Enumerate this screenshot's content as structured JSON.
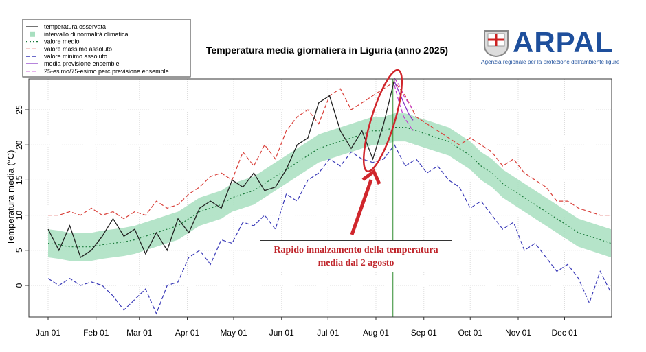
{
  "chart_data": {
    "type": "line",
    "title": "Temperatura media giornaliera in Liguria (anno 2025)",
    "ylabel": "Temperatura media (°C)",
    "xlabel": "",
    "ylim": [
      -4.5,
      29.5
    ],
    "yticks": [
      0,
      5,
      10,
      15,
      20,
      25
    ],
    "xticks": [
      {
        "date": "2025-01-01",
        "label": "Jan 01"
      },
      {
        "date": "2025-02-01",
        "label": "Feb 01"
      },
      {
        "date": "2025-03-01",
        "label": "Mar 01"
      },
      {
        "date": "2025-04-01",
        "label": "Apr 01"
      },
      {
        "date": "2025-05-01",
        "label": "May 01"
      },
      {
        "date": "2025-06-01",
        "label": "Jun 01"
      },
      {
        "date": "2025-07-01",
        "label": "Jul 01"
      },
      {
        "date": "2025-08-01",
        "label": "Aug 01"
      },
      {
        "date": "2025-09-01",
        "label": "Sep 01"
      },
      {
        "date": "2025-10-01",
        "label": "Oct 01"
      },
      {
        "date": "2025-11-01",
        "label": "Nov 01"
      },
      {
        "date": "2025-12-01",
        "label": "Dec 01"
      }
    ],
    "grid": true,
    "legend_position": "top-left",
    "climate_dates": [
      "2025-01-01",
      "2025-01-08",
      "2025-01-15",
      "2025-01-22",
      "2025-01-29",
      "2025-02-05",
      "2025-02-12",
      "2025-02-19",
      "2025-02-26",
      "2025-03-05",
      "2025-03-12",
      "2025-03-19",
      "2025-03-26",
      "2025-04-02",
      "2025-04-09",
      "2025-04-16",
      "2025-04-23",
      "2025-04-30",
      "2025-05-07",
      "2025-05-14",
      "2025-05-21",
      "2025-05-28",
      "2025-06-04",
      "2025-06-11",
      "2025-06-18",
      "2025-06-25",
      "2025-07-02",
      "2025-07-09",
      "2025-07-16",
      "2025-07-23",
      "2025-07-30",
      "2025-08-06",
      "2025-08-13",
      "2025-08-20",
      "2025-08-27",
      "2025-09-03",
      "2025-09-10",
      "2025-09-17",
      "2025-09-24",
      "2025-10-01",
      "2025-10-08",
      "2025-10-15",
      "2025-10-22",
      "2025-10-29",
      "2025-11-05",
      "2025-11-12",
      "2025-11-19",
      "2025-11-26",
      "2025-12-03",
      "2025-12-10",
      "2025-12-17",
      "2025-12-24",
      "2025-12-31"
    ],
    "series": [
      {
        "name": "valore medio",
        "color": "#1a7a3a",
        "style": "dotted",
        "values": [
          6,
          5.8,
          5.5,
          5.5,
          5.5,
          5.8,
          6,
          6.2,
          6.5,
          7,
          7.5,
          8,
          8.5,
          9.5,
          10.5,
          11,
          11.5,
          12.5,
          13,
          13.5,
          14.5,
          15.5,
          16.5,
          17.5,
          18.5,
          19.5,
          20,
          20.5,
          21,
          21.5,
          22,
          22,
          22.5,
          22.5,
          22,
          21.5,
          21,
          20.5,
          19.5,
          18.5,
          17,
          16,
          14.5,
          13.5,
          12.5,
          11.5,
          10.5,
          9.5,
          8.5,
          7.5,
          7,
          6.5,
          6
        ]
      },
      {
        "name": "valore massimo assoluto",
        "color": "#d9403a",
        "style": "dashed",
        "values": [
          10,
          10,
          10.5,
          10,
          11,
          10,
          10.5,
          9.5,
          10.5,
          10,
          12,
          11,
          11.5,
          13,
          14,
          15.5,
          16,
          15,
          19,
          17,
          20,
          18,
          22,
          24,
          25,
          23,
          27,
          28,
          25,
          26,
          27,
          28,
          29,
          27,
          24,
          23,
          22,
          21,
          20,
          21,
          20,
          19,
          17,
          18,
          16,
          15,
          14,
          12,
          12,
          11,
          10.5,
          10,
          10
        ]
      },
      {
        "name": "valore minimo assoluto",
        "color": "#3a3ab8",
        "style": "dashed",
        "values": [
          1,
          0,
          1,
          0,
          0.5,
          0,
          -1.5,
          -3.5,
          -2,
          -0.5,
          -4,
          0,
          0.5,
          4,
          5,
          3,
          6.5,
          6,
          9,
          8.5,
          10,
          8,
          13,
          12,
          15,
          16,
          18,
          17,
          19,
          18,
          17.5,
          18,
          20,
          17,
          18,
          16,
          17,
          15,
          14,
          11,
          12,
          10,
          8,
          9,
          5,
          6,
          4,
          2,
          3,
          1,
          -2.5,
          2,
          -1
        ]
      }
    ],
    "band": {
      "name": "intervallo di normalità climatica",
      "color": "#a8dfc0",
      "halfwidth": 2
    },
    "observed": {
      "name": "temperatura osservata",
      "color": "#222222",
      "dates": [
        "2025-01-01",
        "2025-01-08",
        "2025-01-15",
        "2025-01-22",
        "2025-01-29",
        "2025-02-05",
        "2025-02-12",
        "2025-02-19",
        "2025-02-26",
        "2025-03-05",
        "2025-03-12",
        "2025-03-19",
        "2025-03-26",
        "2025-04-02",
        "2025-04-09",
        "2025-04-16",
        "2025-04-23",
        "2025-04-30",
        "2025-05-07",
        "2025-05-14",
        "2025-05-21",
        "2025-05-28",
        "2025-06-04",
        "2025-06-11",
        "2025-06-18",
        "2025-06-25",
        "2025-07-02",
        "2025-07-09",
        "2025-07-16",
        "2025-07-23",
        "2025-07-30",
        "2025-08-06",
        "2025-08-13"
      ],
      "values": [
        8,
        5,
        8.5,
        4,
        5,
        7,
        9.5,
        7,
        8,
        4.5,
        7.5,
        5,
        9.5,
        7.5,
        11,
        12,
        11,
        15,
        14,
        16,
        13.5,
        14,
        16.5,
        20,
        21,
        26,
        27,
        22,
        19.5,
        22,
        18,
        23,
        29.3
      ]
    },
    "forecast": {
      "dates": [
        "2025-08-13",
        "2025-08-16",
        "2025-08-19",
        "2025-08-22",
        "2025-08-25"
      ],
      "mean": {
        "name": "media previsione ensemble",
        "color": "#8a3ac8",
        "values": [
          29,
          27.5,
          26,
          24.5,
          23.5
        ]
      },
      "p25": {
        "name": "25-esimo/75-esimo perc previsione ensemble",
        "color": "#c03ad0",
        "values": [
          28.5,
          26,
          24,
          23,
          22
        ]
      },
      "p75": {
        "values": [
          29.5,
          28.5,
          27,
          26,
          25
        ]
      }
    },
    "today_marker": {
      "date": "2025-08-12",
      "color": "#2e8b2e"
    },
    "annotation": {
      "line1": "Rapido innalzamento della temperatura",
      "line2": "media dal 2 agosto",
      "color": "#d0262c"
    }
  },
  "legend": {
    "items": [
      {
        "label": "temperatura osservata",
        "color": "#222222",
        "kind": "solid"
      },
      {
        "label": "intervallo di normalità climatica",
        "color": "#a8dfc0",
        "kind": "box"
      },
      {
        "label": "valore medio",
        "color": "#1a7a3a",
        "kind": "dotted"
      },
      {
        "label": "valore massimo assoluto",
        "color": "#d9403a",
        "kind": "dashed"
      },
      {
        "label": "valore minimo assoluto",
        "color": "#3a3ab8",
        "kind": "dashed"
      },
      {
        "label": "media previsione ensemble",
        "color": "#8a3ac8",
        "kind": "solid"
      },
      {
        "label": "25-esimo/75-esimo perc previsione ensemble",
        "color": "#c03ad0",
        "kind": "dashed"
      }
    ]
  },
  "logo": {
    "name": "ARPAL",
    "subtitle": "Agenzia regionale per la protezione dell'ambiente ligure"
  }
}
